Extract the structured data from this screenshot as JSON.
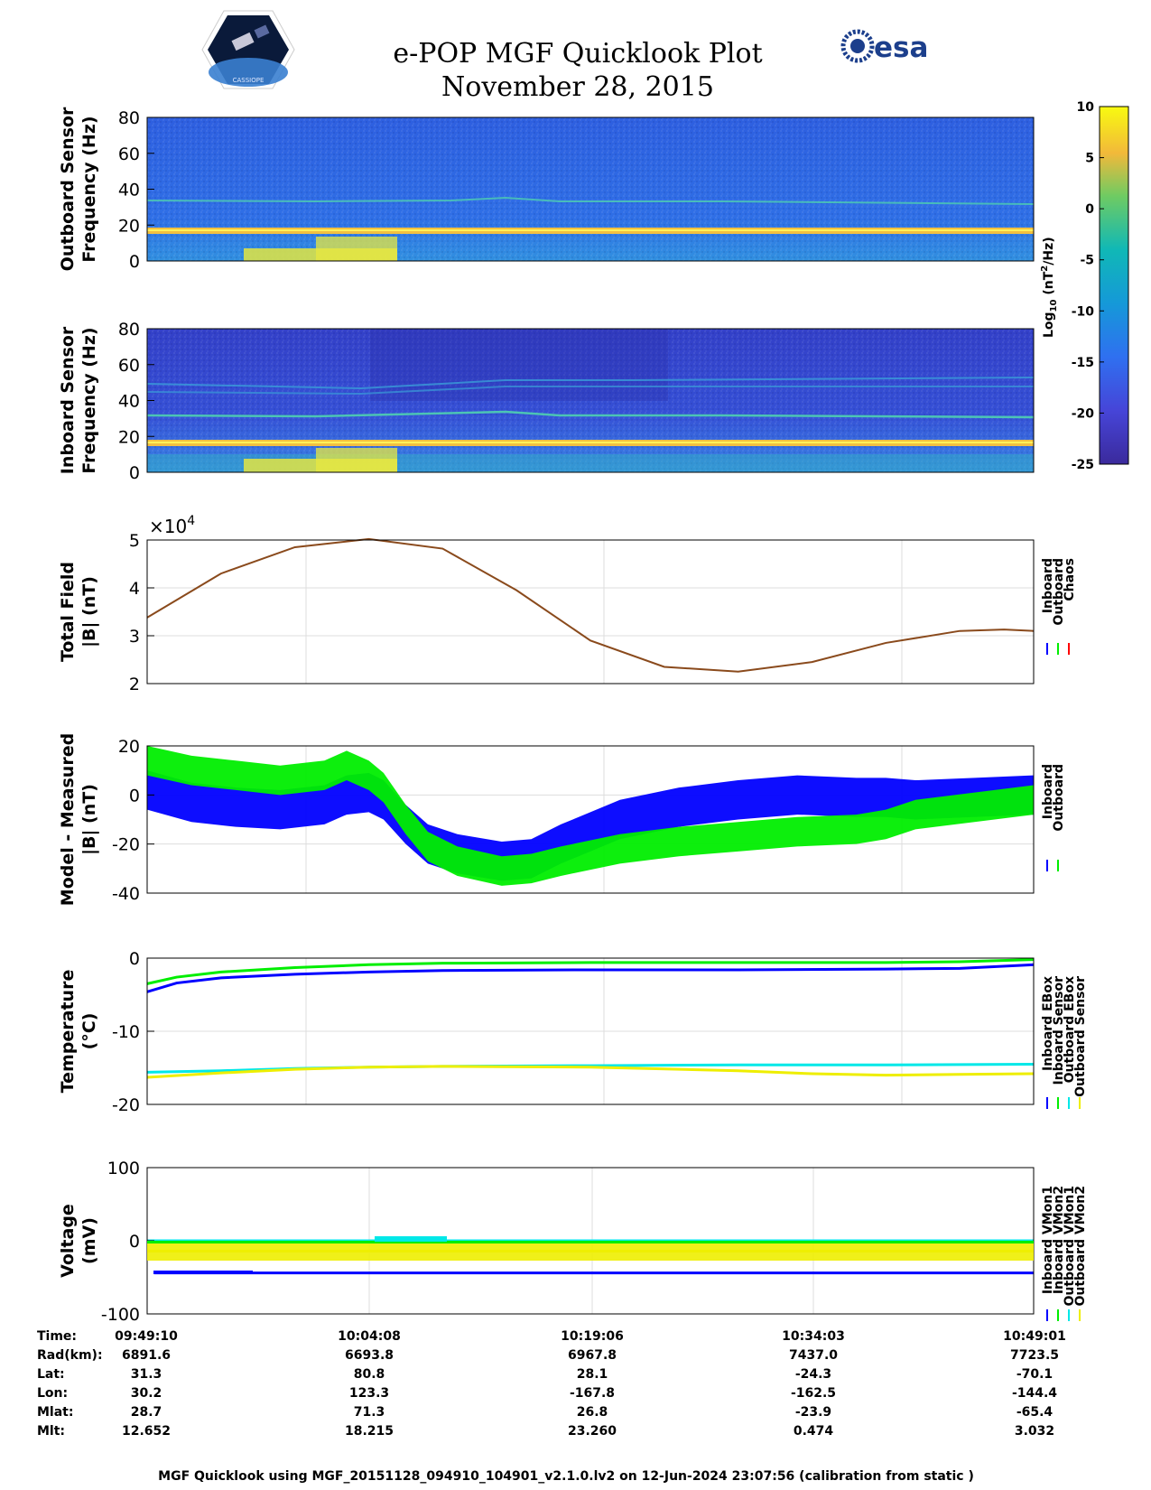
{
  "header": {
    "title": "e-POP MGF Quicklook Plot",
    "date": "November 28, 2015",
    "esa_logo_text": "esa",
    "mission_logo_text": "CASSIOPE"
  },
  "colorbar": {
    "label": "Log10 (nT²/Hz)",
    "label_main": "Log",
    "label_sub": "10",
    "label_rest": " (nT",
    "label_sup": "2",
    "label_end": "/Hz)",
    "ticks": [
      10,
      5,
      0,
      -5,
      -10,
      -15,
      -20,
      -25
    ],
    "range": [
      -25,
      10
    ]
  },
  "exponent_label": "×10",
  "exponent_power": "4",
  "chart_data": [
    {
      "id": "outboard-spectrogram",
      "type": "heatmap",
      "ylabel": [
        "Outboard Sensor",
        "Frequency (Hz)"
      ],
      "ylim": [
        0,
        80
      ],
      "yticks": [
        0,
        20,
        40,
        60,
        80
      ],
      "lines_hz": [
        16,
        32
      ]
    },
    {
      "id": "inboard-spectrogram",
      "type": "heatmap",
      "ylabel": [
        "Inboard Sensor",
        "Frequency (Hz)"
      ],
      "ylim": [
        0,
        80
      ],
      "yticks": [
        0,
        20,
        40,
        60,
        80
      ],
      "lines_hz": [
        16,
        32,
        44,
        52
      ]
    },
    {
      "id": "total-field",
      "type": "line",
      "ylabel": [
        "Total Field",
        "|B| (nT)"
      ],
      "ylim": [
        2,
        5
      ],
      "yticks": [
        2,
        3,
        4,
        5
      ],
      "xlim": [
        0,
        60
      ],
      "series": [
        {
          "name": "Inboard",
          "color": "#0000ff"
        },
        {
          "name": "Outboard",
          "color": "#00ee00"
        },
        {
          "name": "Chaos",
          "color": "#ff0000"
        }
      ],
      "x": [
        0,
        5,
        10,
        15,
        20,
        25,
        30,
        35,
        40,
        45,
        50,
        55,
        58,
        60
      ],
      "values": [
        3.38,
        4.3,
        4.85,
        5.02,
        4.82,
        3.95,
        2.9,
        2.35,
        2.25,
        2.45,
        2.85,
        3.1,
        3.13,
        3.1
      ]
    },
    {
      "id": "model-minus-measured",
      "type": "line",
      "ylabel": [
        "Model - Measured",
        "|B| (nT)"
      ],
      "ylim": [
        -40,
        20
      ],
      "yticks": [
        -40,
        -20,
        0,
        20
      ],
      "xlim": [
        0,
        60
      ],
      "series": [
        {
          "name": "Inboard",
          "color": "#0000ff",
          "x": [
            0,
            3,
            6,
            9,
            12,
            13.5,
            15,
            16,
            17.5,
            19,
            21,
            24,
            26,
            28,
            32,
            36,
            40,
            44,
            48,
            50,
            52,
            56,
            60
          ],
          "values": [
            2,
            -3,
            -5,
            -6,
            -4,
            0,
            1,
            -2,
            -12,
            -20,
            -24,
            -27,
            -26,
            -20,
            -10,
            -5,
            -2,
            0,
            -1,
            -1,
            -2,
            -1,
            0
          ],
          "band": 8
        },
        {
          "name": "Outboard",
          "color": "#00ee00",
          "x": [
            0,
            3,
            6,
            9,
            12,
            13.5,
            15,
            16,
            17.5,
            19,
            21,
            24,
            26,
            28,
            32,
            36,
            40,
            44,
            48,
            50,
            52,
            56,
            60
          ],
          "values": [
            14,
            10,
            8,
            6,
            8,
            12,
            8,
            3,
            -10,
            -21,
            -27,
            -31,
            -30,
            -27,
            -22,
            -19,
            -17,
            -15,
            -14,
            -12,
            -8,
            -5,
            -2
          ],
          "band": 6
        }
      ]
    },
    {
      "id": "temperature",
      "type": "line",
      "ylabel": [
        "Temperature",
        "(°C)"
      ],
      "ylim": [
        -20,
        0
      ],
      "yticks": [
        -20,
        -10,
        0
      ],
      "xlim": [
        0,
        60
      ],
      "series": [
        {
          "name": "Inboard EBox",
          "color": "#0000ff",
          "x": [
            0,
            2,
            5,
            10,
            15,
            20,
            30,
            40,
            50,
            55,
            60
          ],
          "values": [
            -4.6,
            -3.4,
            -2.7,
            -2.2,
            -1.9,
            -1.7,
            -1.6,
            -1.6,
            -1.5,
            -1.4,
            -0.9
          ]
        },
        {
          "name": "Inboard Sensor",
          "color": "#00ee00",
          "x": [
            0,
            2,
            5,
            10,
            15,
            20,
            30,
            40,
            50,
            55,
            60
          ],
          "values": [
            -3.5,
            -2.6,
            -1.9,
            -1.3,
            -0.9,
            -0.7,
            -0.6,
            -0.6,
            -0.6,
            -0.5,
            -0.2
          ]
        },
        {
          "name": "Outboard EBox",
          "color": "#00e8e8",
          "x": [
            0,
            5,
            10,
            15,
            20,
            30,
            40,
            50,
            60
          ],
          "values": [
            -15.6,
            -15.4,
            -15.1,
            -14.9,
            -14.8,
            -14.7,
            -14.6,
            -14.6,
            -14.5
          ]
        },
        {
          "name": "Outboard Sensor",
          "color": "#eeee00",
          "x": [
            0,
            5,
            10,
            15,
            20,
            30,
            40,
            45,
            50,
            55,
            60
          ],
          "values": [
            -16.3,
            -15.7,
            -15.2,
            -14.9,
            -14.8,
            -14.9,
            -15.4,
            -15.8,
            -16.0,
            -15.9,
            -15.8
          ]
        }
      ]
    },
    {
      "id": "voltage",
      "type": "line",
      "ylabel": [
        "Voltage",
        "(mV)"
      ],
      "ylim": [
        -100,
        100
      ],
      "yticks": [
        -100,
        0,
        100
      ],
      "xlim": [
        0,
        60
      ],
      "series": [
        {
          "name": "Inboard VMon1",
          "color": "#0000ff",
          "x": [
            0.5,
            60
          ],
          "values": [
            -44,
            -44
          ]
        },
        {
          "name": "Inboard VMon2",
          "color": "#00ee00",
          "x": [
            0,
            60
          ],
          "values": [
            -2,
            -2
          ]
        },
        {
          "name": "Outboard VMon1",
          "color": "#00e8e8",
          "x": [
            0,
            60
          ],
          "values": [
            0,
            0
          ]
        },
        {
          "name": "Outboard VMon2",
          "color": "#eeee00",
          "x": [
            0,
            60
          ],
          "values": [
            -14,
            -14
          ]
        }
      ]
    }
  ],
  "orbit_table": {
    "row_labels": [
      "Time:",
      "Rad(km):",
      "Lat:",
      "Lon:",
      "Mlat:",
      "Mlt:"
    ],
    "columns": [
      [
        "09:49:10",
        "6891.6",
        "31.3",
        "30.2",
        "28.7",
        "12.652"
      ],
      [
        "10:04:08",
        "6693.8",
        "80.8",
        "123.3",
        "71.3",
        "18.215"
      ],
      [
        "10:19:06",
        "6967.8",
        "28.1",
        "-167.8",
        "26.8",
        "23.260"
      ],
      [
        "10:34:03",
        "7437.0",
        "-24.3",
        "-162.5",
        "-23.9",
        "0.474"
      ],
      [
        "10:49:01",
        "7723.5",
        "-70.1",
        "-144.4",
        "-65.4",
        "3.032"
      ]
    ]
  },
  "footer": "MGF Quicklook using MGF_20151128_094910_104901_v2.1.0.lv2 on 12-Jun-2024 23:07:56 (calibration from static )"
}
